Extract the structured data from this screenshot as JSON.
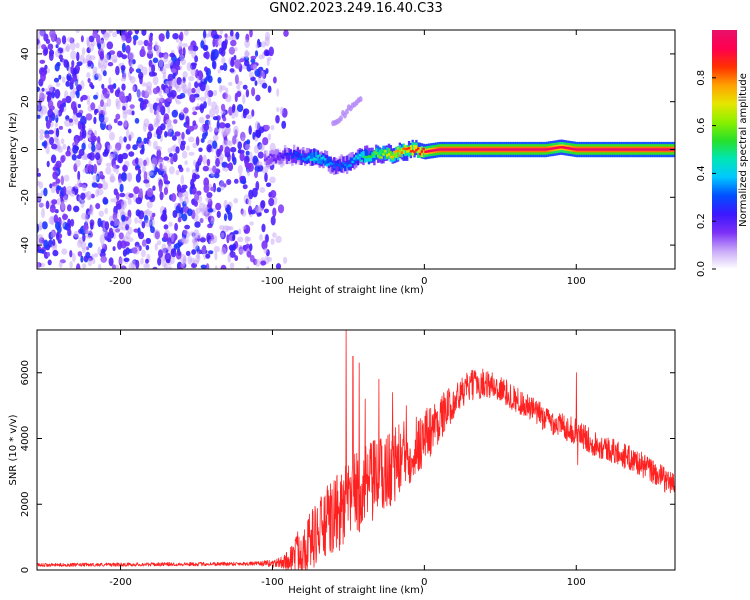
{
  "figure": {
    "title": "GN02.2023.249.16.40.C33"
  },
  "chart_data": [
    {
      "type": "heatmap",
      "name": "spectrogram",
      "xlabel": "Height of straight line (km)",
      "ylabel": "Frequency (Hz)",
      "xlim": [
        -255,
        165
      ],
      "ylim": [
        -50,
        50
      ],
      "xticks": [
        -200,
        -100,
        0,
        100
      ],
      "yticks": [
        -40,
        -20,
        0,
        20,
        40
      ],
      "colorbar": {
        "label": "Normalized spectral amplitude",
        "range": [
          0,
          1
        ],
        "ticks": [
          0.0,
          0.2,
          0.4,
          0.6,
          0.8
        ],
        "palette": [
          "#ffffff",
          "#c8a8f8",
          "#7b2ff7",
          "#3a18ff",
          "#0050ff",
          "#00c8ff",
          "#00e6b4",
          "#28e028",
          "#8cf000",
          "#e6e600",
          "#ffa000",
          "#ff3000",
          "#ff0050",
          "#e8106a"
        ]
      },
      "ridge": {
        "x": [
          -105,
          -95,
          -85,
          -78,
          -72,
          -65,
          -58,
          -50,
          -45,
          -40,
          -30,
          -20,
          -10,
          0,
          10,
          40,
          80,
          90,
          100,
          130,
          160
        ],
        "y": [
          -4,
          -3,
          -2,
          -4,
          -3,
          -5,
          -7,
          -6,
          -4,
          -3,
          -2,
          -2,
          0,
          -1,
          0,
          0,
          0,
          1,
          0,
          0,
          0
        ],
        "amplitude": [
          0.15,
          0.2,
          0.3,
          0.35,
          0.45,
          0.4,
          0.3,
          0.35,
          0.4,
          0.5,
          0.6,
          0.75,
          0.85,
          0.9,
          1.0,
          1.0,
          1.0,
          0.9,
          1.0,
          1.0,
          1.0
        ]
      },
      "noise_region_x": [
        -255,
        -90
      ],
      "faint_branch": {
        "x": [
          -60,
          -42
        ],
        "y": [
          10,
          22
        ]
      }
    },
    {
      "type": "line",
      "name": "snr",
      "xlabel": "Height of straight line (km)",
      "ylabel": "SNR (10 * v/v)",
      "xlim": [
        -255,
        165
      ],
      "ylim": [
        0,
        7300
      ],
      "xticks": [
        -200,
        -100,
        0,
        100
      ],
      "yticks": [
        0,
        2000,
        4000,
        6000
      ],
      "color": "#ff2020",
      "envelope": {
        "x": [
          -255,
          -150,
          -100,
          -90,
          -85,
          -75,
          -65,
          -55,
          -45,
          -35,
          -25,
          -15,
          -5,
          5,
          15,
          25,
          30,
          40,
          50,
          60,
          70,
          80,
          90,
          100,
          110,
          120,
          130,
          140,
          150,
          160,
          165
        ],
        "y": [
          150,
          180,
          200,
          250,
          500,
          900,
          1400,
          1800,
          2300,
          2600,
          3000,
          3400,
          3800,
          4300,
          4900,
          5400,
          5600,
          5700,
          5500,
          5200,
          4900,
          4600,
          4400,
          4200,
          3900,
          3700,
          3500,
          3300,
          3000,
          2700,
          2600
        ]
      },
      "noise_amp": {
        "x": [
          -255,
          -110,
          -95,
          -90,
          -80,
          -60,
          -40,
          -20,
          0,
          20,
          60,
          165
        ],
        "y": [
          50,
          60,
          150,
          350,
          800,
          1200,
          1300,
          1200,
          900,
          500,
          400,
          380
        ]
      },
      "spikes": [
        {
          "x": -51.5,
          "y": 7300
        },
        {
          "x": -47,
          "y": 6500
        },
        {
          "x": -43,
          "y": 6300
        },
        {
          "x": -39,
          "y": 5200
        },
        {
          "x": -30,
          "y": 5800
        },
        {
          "x": -21,
          "y": 5400
        },
        {
          "x": -12,
          "y": 5000
        },
        {
          "x": 100,
          "y": 6000
        },
        {
          "x": 101,
          "y": 3200
        }
      ]
    }
  ]
}
